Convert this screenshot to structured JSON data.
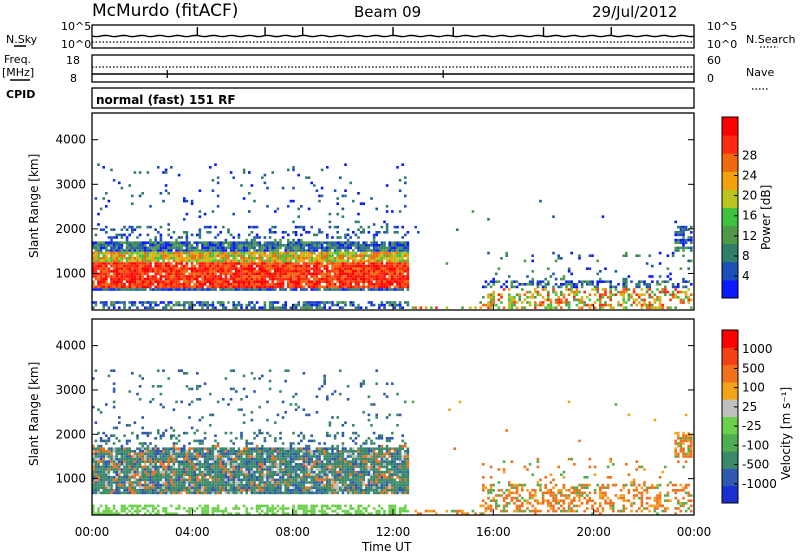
{
  "header": {
    "station": "McMurdo (fitACF)",
    "beam": "Beam 09",
    "date": "29/Jul/2012"
  },
  "status_panel": {
    "left_labels": {
      "nsky": "N.Sky",
      "freq": "Freq.",
      "mhz": "[MHz]",
      "cpid": "CPID"
    },
    "right_labels": {
      "nsearch": "N.Search",
      "nave": "Nave"
    },
    "noise_ticks_left": [
      "10^5",
      "10^0"
    ],
    "noise_ticks_right": [
      "10^5",
      "10^0"
    ],
    "freq_ticks": [
      "18",
      "8"
    ],
    "nave_ticks": [
      "60",
      "0"
    ],
    "cpid_text": "normal (fast) 151 RF"
  },
  "x_axis": {
    "title": "Time UT",
    "ticks": [
      "00:00",
      "04:00",
      "08:00",
      "12:00",
      "16:00",
      "20:00",
      "00:00"
    ]
  },
  "chart_data": [
    {
      "type": "heatmap",
      "name": "power",
      "ylabel": "Slant Range [km]",
      "yticks": [
        "1000",
        "2000",
        "3000",
        "4000"
      ],
      "ylim": [
        180,
        4600
      ],
      "xlim_hours": [
        0,
        24
      ],
      "colorbar": {
        "label": "Power [dB]",
        "ticks": [
          "4",
          "8",
          "12",
          "16",
          "20",
          "24",
          "28"
        ],
        "colors": [
          "#0a1aff",
          "#1d4fb8",
          "#2f7d6a",
          "#4f9a4a",
          "#3fc23f",
          "#b9c41e",
          "#f2a10c",
          "#f06a0c",
          "#ff2a10",
          "#ff0000"
        ]
      }
    },
    {
      "type": "heatmap",
      "name": "velocity",
      "ylabel": "Slant Range [km]",
      "yticks": [
        "1000",
        "2000",
        "3000",
        "4000"
      ],
      "ylim": [
        180,
        4600
      ],
      "xlim_hours": [
        0,
        24
      ],
      "colorbar": {
        "label": "Velocity [m s⁻¹]",
        "ticks": [
          "1000",
          "500",
          "100",
          "25",
          "-25",
          "-100",
          "-500",
          "-1000"
        ],
        "colors": [
          "#1a2fd0",
          "#2f58b0",
          "#3a8a6a",
          "#4fae4f",
          "#6ad04a",
          "#c0c0c0",
          "#f2a31a",
          "#f0701c",
          "#f44012",
          "#ff0000"
        ]
      }
    }
  ]
}
